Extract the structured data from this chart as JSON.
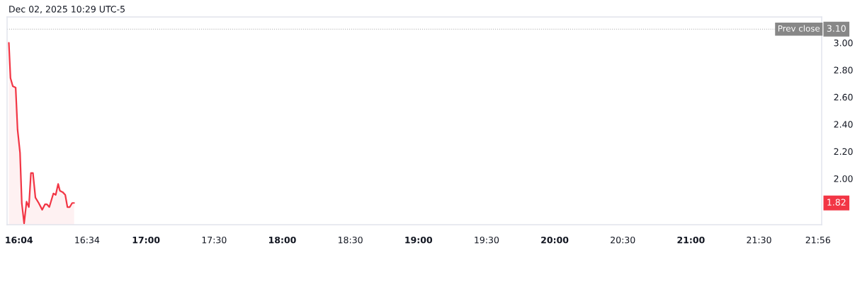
{
  "chart_data": {
    "type": "area",
    "x": [
      15.993,
      16.005,
      16.022,
      16.043,
      16.057,
      16.075,
      16.088,
      16.105,
      16.123,
      16.14,
      16.155,
      16.17,
      16.188,
      16.212,
      16.238,
      16.258,
      16.273,
      16.29,
      16.32,
      16.337,
      16.355,
      16.368,
      16.388,
      16.407,
      16.423,
      16.44,
      16.458,
      16.472
    ],
    "series": [
      {
        "color": "#f23645",
        "values": [
          3.0,
          2.74,
          2.68,
          2.67,
          2.36,
          2.19,
          1.82,
          1.67,
          1.83,
          1.79,
          2.04,
          2.04,
          1.86,
          1.82,
          1.77,
          1.81,
          1.81,
          1.79,
          1.89,
          1.88,
          1.96,
          1.91,
          1.9,
          1.88,
          1.79,
          1.79,
          1.82,
          1.82
        ]
      }
    ],
    "xlim": [
      15.98,
      21.96
    ],
    "ylim": [
      1.66,
      3.19
    ],
    "xticks": [
      {
        "value": 16.067,
        "label": "16:04"
      },
      {
        "value": 16.567,
        "label": "16:34"
      },
      {
        "value": 17,
        "label": "17:00"
      },
      {
        "value": 17.5,
        "label": "17:30"
      },
      {
        "value": 18,
        "label": "18:00"
      },
      {
        "value": 18.5,
        "label": "18:30"
      },
      {
        "value": 19,
        "label": "19:00"
      },
      {
        "value": 19.5,
        "label": "19:30"
      },
      {
        "value": 20,
        "label": "20:00"
      },
      {
        "value": 20.5,
        "label": "20:30"
      },
      {
        "value": 21,
        "label": "21:00"
      },
      {
        "value": 21.5,
        "label": "21:30"
      },
      {
        "value": 21.933,
        "label": "21:56"
      }
    ],
    "yticks": [
      {
        "value": 2.0,
        "label": "2.00"
      },
      {
        "value": 2.2,
        "label": "2.20"
      },
      {
        "value": 2.4,
        "label": "2.40"
      },
      {
        "value": 2.6,
        "label": "2.60"
      },
      {
        "value": 2.8,
        "label": "2.80"
      },
      {
        "value": 3.0,
        "label": "3.00"
      }
    ],
    "ref_lines": [
      {
        "axis": "y",
        "value": 3.1,
        "label": "Prev close",
        "color": "#878787",
        "line_style": "dotted"
      }
    ],
    "annotations": [
      "Dec 02, 2025 10:29 UTC-5",
      {
        "text": "3.10",
        "y": 3.1
      },
      {
        "text": "1.82",
        "y": 1.82
      }
    ],
    "line_style": "solid"
  }
}
